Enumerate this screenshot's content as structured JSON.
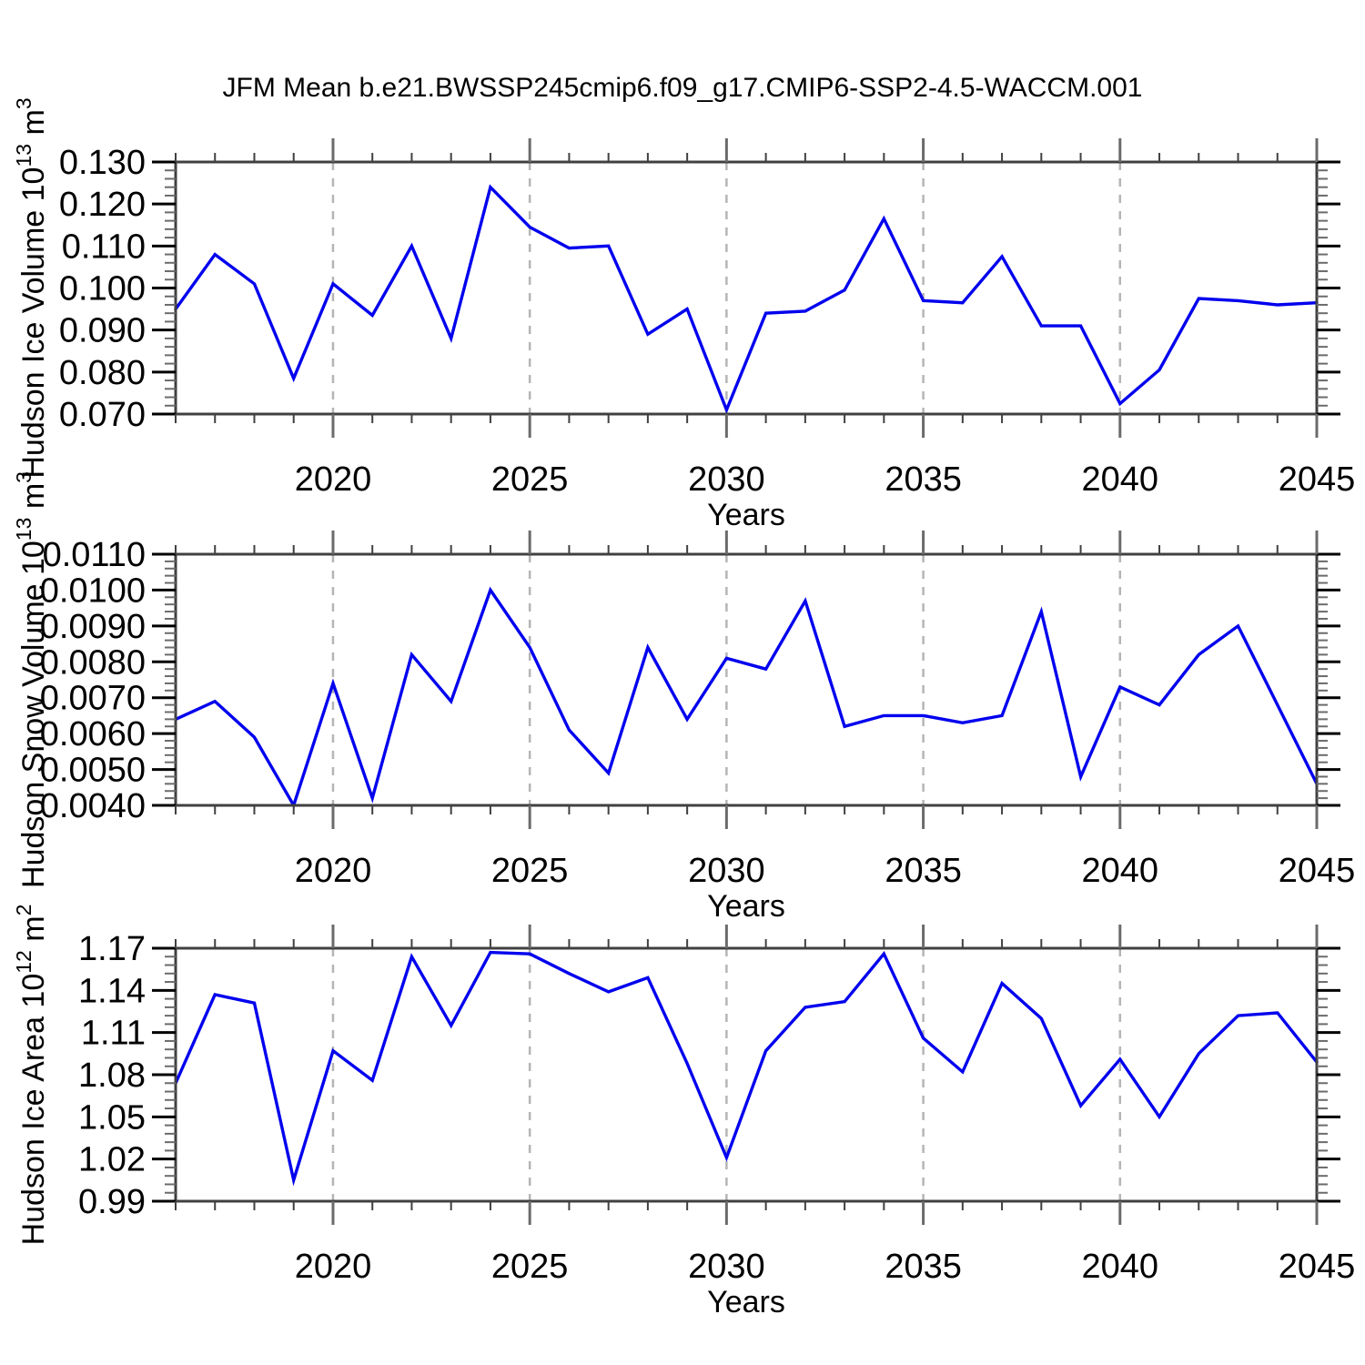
{
  "title": "JFM Mean b.e21.BWSSP245cmip6.f09_g17.CMIP6-SSP2-4.5-WACCM.001",
  "line_color": "#0000ee",
  "x_axis": {
    "label": "Years",
    "range": [
      2016,
      2045
    ],
    "major_ticks": [
      2020,
      2025,
      2030,
      2035,
      2040,
      2045
    ],
    "gridlines": [
      2020,
      2025,
      2030,
      2035,
      2040
    ],
    "minor_step": 1
  },
  "chart_data": [
    {
      "type": "line",
      "name": "hudson-ice-volume",
      "xlabel": "Years",
      "ylabel": "Hudson Ice Volume 10^13 m^3",
      "ylabel_parts": {
        "text": "Hudson Ice Volume 10",
        "sup1": "13",
        "mid": " m",
        "sup2": "3"
      },
      "ylim": [
        0.07,
        0.13
      ],
      "ytick_values": [
        0.07,
        0.08,
        0.09,
        0.1,
        0.11,
        0.12,
        0.13
      ],
      "ytick_labels": [
        "0.070",
        "0.080",
        "0.090",
        "0.100",
        "0.110",
        "0.120",
        "0.130"
      ],
      "minor_per_major": 4,
      "x": [
        2016,
        2017,
        2018,
        2019,
        2020,
        2021,
        2022,
        2023,
        2024,
        2025,
        2026,
        2027,
        2028,
        2029,
        2030,
        2031,
        2032,
        2033,
        2034,
        2035,
        2036,
        2037,
        2038,
        2039,
        2040,
        2041,
        2042,
        2043,
        2044,
        2045
      ],
      "values": [
        0.095,
        0.108,
        0.101,
        0.0785,
        0.101,
        0.0935,
        0.11,
        0.088,
        0.124,
        0.1145,
        0.1095,
        0.11,
        0.089,
        0.095,
        0.071,
        0.094,
        0.0945,
        0.0995,
        0.1165,
        0.097,
        0.0965,
        0.1075,
        0.091,
        0.091,
        0.0725,
        0.0805,
        0.0975,
        0.097,
        0.096,
        0.0965
      ]
    },
    {
      "type": "line",
      "name": "hudson-snow-volume",
      "xlabel": "Years",
      "ylabel": "Hudson Snow Volume 10^13 m^3",
      "ylabel_parts": {
        "text": "Hudson Snow Volume 10",
        "sup1": "13",
        "mid": " m",
        "sup2": "3"
      },
      "ylim": [
        0.004,
        0.011
      ],
      "ytick_values": [
        0.004,
        0.005,
        0.006,
        0.007,
        0.008,
        0.009,
        0.01,
        0.011
      ],
      "ytick_labels": [
        "0.0040",
        "0.0050",
        "0.0060",
        "0.0070",
        "0.0080",
        "0.0090",
        "0.0100",
        "0.0110"
      ],
      "minor_per_major": 4,
      "x": [
        2016,
        2017,
        2018,
        2019,
        2020,
        2021,
        2022,
        2023,
        2024,
        2025,
        2026,
        2027,
        2028,
        2029,
        2030,
        2031,
        2032,
        2033,
        2034,
        2035,
        2036,
        2037,
        2038,
        2039,
        2040,
        2041,
        2042,
        2043,
        2044,
        2045
      ],
      "values": [
        0.0064,
        0.0069,
        0.0059,
        0.004,
        0.0074,
        0.0042,
        0.0082,
        0.0069,
        0.01,
        0.0084,
        0.0061,
        0.0049,
        0.0084,
        0.0064,
        0.0081,
        0.0078,
        0.0097,
        0.0062,
        0.0065,
        0.0065,
        0.0063,
        0.0065,
        0.0094,
        0.0048,
        0.0073,
        0.0068,
        0.0082,
        0.009,
        0.0068,
        0.0046
      ]
    },
    {
      "type": "line",
      "name": "hudson-ice-area",
      "xlabel": "Years",
      "ylabel": "Hudson Ice Area 10^12 m^2",
      "ylabel_parts": {
        "text": "Hudson Ice Area 10",
        "sup1": "12",
        "mid": " m",
        "sup2": "2"
      },
      "ylim": [
        0.99,
        1.17
      ],
      "ytick_values": [
        0.99,
        1.02,
        1.05,
        1.08,
        1.11,
        1.14,
        1.17
      ],
      "ytick_labels": [
        "0.99",
        "1.02",
        "1.05",
        "1.08",
        "1.11",
        "1.14",
        "1.17"
      ],
      "minor_per_major": 4,
      "x": [
        2016,
        2017,
        2018,
        2019,
        2020,
        2021,
        2022,
        2023,
        2024,
        2025,
        2026,
        2027,
        2028,
        2029,
        2030,
        2031,
        2032,
        2033,
        2034,
        2035,
        2036,
        2037,
        2038,
        2039,
        2040,
        2041,
        2042,
        2043,
        2044,
        2045
      ],
      "values": [
        1.074,
        1.137,
        1.131,
        1.005,
        1.097,
        1.076,
        1.164,
        1.115,
        1.167,
        1.166,
        1.152,
        1.139,
        1.149,
        1.088,
        1.021,
        1.097,
        1.128,
        1.132,
        1.166,
        1.106,
        1.082,
        1.145,
        1.12,
        1.058,
        1.091,
        1.05,
        1.095,
        1.122,
        1.124,
        1.089
      ]
    }
  ]
}
